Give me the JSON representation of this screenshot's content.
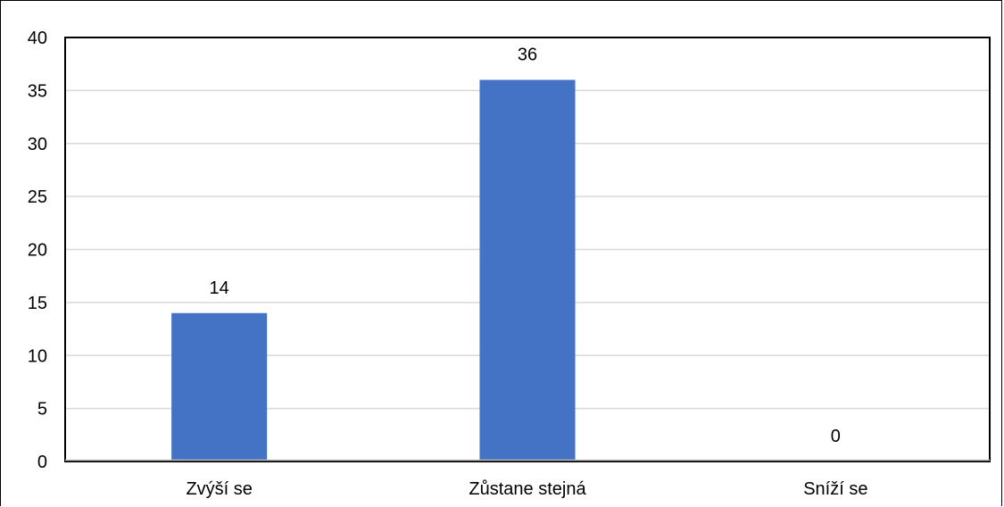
{
  "chart_data": {
    "type": "bar",
    "categories": [
      "Zvýší se",
      "Zůstane stejná",
      "Sníží se"
    ],
    "values": [
      14,
      36,
      0
    ],
    "data_labels": [
      "14",
      "36",
      "0"
    ],
    "ylim": [
      0,
      40
    ],
    "yticks": [
      0,
      5,
      10,
      15,
      20,
      25,
      30,
      35,
      40
    ],
    "ytick_labels": [
      "0",
      "5",
      "10",
      "15",
      "20",
      "25",
      "30",
      "35",
      "40"
    ],
    "grid": true,
    "legend": "none",
    "colors": {
      "bar": "#4472C4",
      "grid": "#D9D9D9",
      "axis": "#000000"
    }
  }
}
